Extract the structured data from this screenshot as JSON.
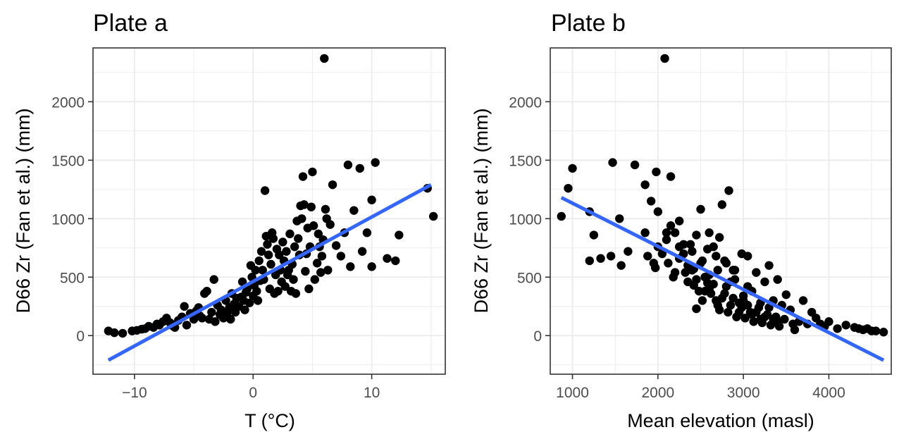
{
  "colors": {
    "points": "#000000",
    "fit_line": "#3366ff",
    "grid": "#ebebeb",
    "panel_border": "#333333",
    "tick_text": "#4d4d4d"
  },
  "chart_data": [
    {
      "type": "scatter",
      "title": "Plate a",
      "xlabel": "T (°C)",
      "ylabel": "D66 Zr (Fan et al.) (mm)",
      "xlim": [
        -13.5,
        16.2
      ],
      "ylim": [
        -330,
        2460
      ],
      "xticks": [
        -10,
        0,
        10
      ],
      "xtick_labels": [
        "−10",
        "0",
        "10"
      ],
      "yticks": [
        0,
        500,
        1000,
        1500,
        2000
      ],
      "ytick_labels": [
        "0",
        "500",
        "1000",
        "1500",
        "2000"
      ],
      "grid": true,
      "fit_line": {
        "method": "linear",
        "x": [
          -12.2,
          15.0
        ],
        "y": [
          -210,
          1290
        ]
      },
      "points": [
        [
          -12.2,
          40
        ],
        [
          -11.7,
          25
        ],
        [
          -11,
          20
        ],
        [
          -10.2,
          40
        ],
        [
          -9.8,
          45
        ],
        [
          -9.4,
          55
        ],
        [
          -9.1,
          60
        ],
        [
          -8.8,
          80
        ],
        [
          -8.4,
          70
        ],
        [
          -8.1,
          100
        ],
        [
          -7.9,
          90
        ],
        [
          -7.6,
          120
        ],
        [
          -7.3,
          150
        ],
        [
          -7,
          110
        ],
        [
          -6.8,
          85
        ],
        [
          -6.6,
          70
        ],
        [
          -6.3,
          130
        ],
        [
          -6,
          160
        ],
        [
          -5.8,
          250
        ],
        [
          -5.6,
          90
        ],
        [
          -5.3,
          190
        ],
        [
          -5,
          140
        ],
        [
          -4.8,
          210
        ],
        [
          -4.6,
          240
        ],
        [
          -4.5,
          170
        ],
        [
          -4.3,
          150
        ],
        [
          -4.1,
          360
        ],
        [
          -3.9,
          380
        ],
        [
          -3.7,
          140
        ],
        [
          -3.5,
          200
        ],
        [
          -3.3,
          480
        ],
        [
          -3.2,
          120
        ],
        [
          -3,
          260
        ],
        [
          -2.8,
          180
        ],
        [
          -2.7,
          220
        ],
        [
          -2.5,
          150
        ],
        [
          -2.3,
          300
        ],
        [
          -2.2,
          190
        ],
        [
          -2,
          240
        ],
        [
          -1.9,
          140
        ],
        [
          -1.8,
          360
        ],
        [
          -1.6,
          270
        ],
        [
          -1.5,
          200
        ],
        [
          -1.4,
          320
        ],
        [
          -1.2,
          250
        ],
        [
          -1,
          330
        ],
        [
          -0.9,
          460
        ],
        [
          -0.8,
          300
        ],
        [
          -0.7,
          220
        ],
        [
          -0.6,
          370
        ],
        [
          -0.5,
          400
        ],
        [
          -0.3,
          280
        ],
        [
          -0.2,
          600
        ],
        [
          -0.1,
          500
        ],
        [
          0,
          340
        ],
        [
          0.1,
          430
        ],
        [
          0.2,
          560
        ],
        [
          0.3,
          380
        ],
        [
          0.4,
          300
        ],
        [
          0.5,
          640
        ],
        [
          0.6,
          470
        ],
        [
          0.7,
          720
        ],
        [
          0.8,
          560
        ],
        [
          0.9,
          480
        ],
        [
          1,
          1240
        ],
        [
          1.1,
          850
        ],
        [
          1.2,
          780
        ],
        [
          1.3,
          690
        ],
        [
          1.4,
          400
        ],
        [
          1.5,
          610
        ],
        [
          1.6,
          880
        ],
        [
          1.7,
          830
        ],
        [
          1.8,
          360
        ],
        [
          1.9,
          520
        ],
        [
          2,
          740
        ],
        [
          2.1,
          380
        ],
        [
          2.2,
          690
        ],
        [
          2.3,
          560
        ],
        [
          2.4,
          460
        ],
        [
          2.5,
          800
        ],
        [
          2.6,
          640
        ],
        [
          2.7,
          420
        ],
        [
          2.8,
          720
        ],
        [
          2.9,
          520
        ],
        [
          3,
          560
        ],
        [
          3.1,
          870
        ],
        [
          3.2,
          380
        ],
        [
          3.3,
          610
        ],
        [
          3.4,
          480
        ],
        [
          3.5,
          760
        ],
        [
          3.6,
          360
        ],
        [
          3.7,
          980
        ],
        [
          3.8,
          830
        ],
        [
          3.9,
          690
        ],
        [
          4,
          1110
        ],
        [
          4.1,
          1000
        ],
        [
          4.2,
          1360
        ],
        [
          4.3,
          1120
        ],
        [
          4.4,
          550
        ],
        [
          4.5,
          700
        ],
        [
          4.6,
          920
        ],
        [
          4.7,
          400
        ],
        [
          4.8,
          760
        ],
        [
          4.9,
          1100
        ],
        [
          5,
          1400
        ],
        [
          5.1,
          940
        ],
        [
          5.2,
          480
        ],
        [
          5.4,
          620
        ],
        [
          5.5,
          870
        ],
        [
          5.6,
          760
        ],
        [
          5.7,
          540
        ],
        [
          5.8,
          680
        ],
        [
          5.9,
          820
        ],
        [
          6,
          2370
        ],
        [
          6.1,
          1080
        ],
        [
          6.2,
          1000
        ],
        [
          6.3,
          560
        ],
        [
          6.5,
          950
        ],
        [
          6.7,
          1290
        ],
        [
          7,
          770
        ],
        [
          7.4,
          680
        ],
        [
          7.7,
          880
        ],
        [
          8,
          1460
        ],
        [
          8.2,
          590
        ],
        [
          8.5,
          1070
        ],
        [
          9,
          1430
        ],
        [
          9.2,
          720
        ],
        [
          9.6,
          880
        ],
        [
          10,
          1160
        ],
        [
          10,
          590
        ],
        [
          10.3,
          1480
        ],
        [
          11.3,
          660
        ],
        [
          12,
          640
        ],
        [
          12.3,
          860
        ],
        [
          14.7,
          1260
        ],
        [
          15.2,
          1020
        ]
      ]
    },
    {
      "type": "scatter",
      "title": "Plate b",
      "xlabel": "Mean elevation (masl)",
      "ylabel": "D66 Zr (Fan et al.) (mm)",
      "xlim": [
        740,
        4730
      ],
      "ylim": [
        -330,
        2460
      ],
      "xticks": [
        1000,
        2000,
        3000,
        4000
      ],
      "xtick_labels": [
        "1000",
        "2000",
        "3000",
        "4000"
      ],
      "yticks": [
        0,
        500,
        1000,
        1500,
        2000
      ],
      "ytick_labels": [
        "0",
        "500",
        "1000",
        "1500",
        "2000"
      ],
      "grid": true,
      "fit_line": {
        "method": "linear",
        "x": [
          870,
          4640
        ],
        "y": [
          1180,
          -210
        ]
      },
      "points": [
        [
          870,
          1020
        ],
        [
          950,
          1260
        ],
        [
          1000,
          1430
        ],
        [
          1200,
          1060
        ],
        [
          1200,
          640
        ],
        [
          1250,
          860
        ],
        [
          1330,
          660
        ],
        [
          1450,
          680
        ],
        [
          1470,
          1480
        ],
        [
          1550,
          1000
        ],
        [
          1570,
          600
        ],
        [
          1650,
          720
        ],
        [
          1730,
          1460
        ],
        [
          1850,
          1290
        ],
        [
          1850,
          880
        ],
        [
          1880,
          680
        ],
        [
          1920,
          1150
        ],
        [
          1950,
          620
        ],
        [
          1970,
          580
        ],
        [
          1980,
          1400
        ],
        [
          2000,
          1060
        ],
        [
          2050,
          700
        ],
        [
          2080,
          2370
        ],
        [
          2100,
          880
        ],
        [
          2150,
          1360
        ],
        [
          2150,
          940
        ],
        [
          2200,
          540
        ],
        [
          2250,
          980
        ],
        [
          2300,
          780
        ],
        [
          2350,
          460
        ],
        [
          2400,
          720
        ],
        [
          2420,
          570
        ],
        [
          2450,
          230
        ],
        [
          2500,
          1080
        ],
        [
          2520,
          640
        ],
        [
          2550,
          500
        ],
        [
          2600,
          400
        ],
        [
          2600,
          880
        ],
        [
          2650,
          760
        ],
        [
          2700,
          260
        ],
        [
          2720,
          840
        ],
        [
          2750,
          1120
        ],
        [
          2800,
          620
        ],
        [
          2830,
          1240
        ],
        [
          2850,
          460
        ],
        [
          2900,
          560
        ],
        [
          2950,
          200
        ],
        [
          2980,
          700
        ],
        [
          3000,
          340
        ],
        [
          3050,
          680
        ],
        [
          3050,
          420
        ],
        [
          3100,
          180
        ],
        [
          3150,
          540
        ],
        [
          3200,
          140
        ],
        [
          3250,
          460
        ],
        [
          3300,
          600
        ],
        [
          3350,
          300
        ],
        [
          3400,
          480
        ],
        [
          3400,
          120
        ],
        [
          3450,
          260
        ],
        [
          3500,
          350
        ],
        [
          3550,
          220
        ],
        [
          3600,
          50
        ],
        [
          3650,
          120
        ],
        [
          3700,
          300
        ],
        [
          3750,
          100
        ],
        [
          3800,
          200
        ],
        [
          3850,
          150
        ],
        [
          3900,
          100
        ],
        [
          3950,
          80
        ],
        [
          4000,
          120
        ],
        [
          4100,
          60
        ],
        [
          4200,
          90
        ],
        [
          4300,
          70
        ],
        [
          4350,
          60
        ],
        [
          4400,
          50
        ],
        [
          4450,
          60
        ],
        [
          4500,
          40
        ],
        [
          4550,
          40
        ],
        [
          4640,
          30
        ],
        [
          2200,
          880
        ],
        [
          2300,
          700
        ],
        [
          2400,
          560
        ],
        [
          2500,
          620
        ],
        [
          2600,
          520
        ],
        [
          2700,
          560
        ],
        [
          2800,
          420
        ],
        [
          2900,
          480
        ],
        [
          3000,
          300
        ],
        [
          3100,
          380
        ],
        [
          3200,
          280
        ],
        [
          3300,
          240
        ],
        [
          2250,
          660
        ],
        [
          2350,
          600
        ],
        [
          2450,
          480
        ],
        [
          2550,
          380
        ],
        [
          2650,
          440
        ],
        [
          2750,
          320
        ],
        [
          2850,
          260
        ],
        [
          2950,
          280
        ],
        [
          3050,
          260
        ],
        [
          3150,
          200
        ],
        [
          3250,
          160
        ],
        [
          3350,
          140
        ],
        [
          2120,
          620
        ],
        [
          2180,
          500
        ],
        [
          2320,
          540
        ],
        [
          2420,
          430
        ],
        [
          2520,
          300
        ],
        [
          2620,
          360
        ],
        [
          2720,
          220
        ],
        [
          2820,
          200
        ],
        [
          2920,
          160
        ],
        [
          3020,
          150
        ],
        [
          3120,
          120
        ],
        [
          3220,
          110
        ],
        [
          3320,
          90
        ],
        [
          3420,
          80
        ],
        [
          2480,
          380
        ],
        [
          2580,
          450
        ],
        [
          2680,
          300
        ],
        [
          2780,
          360
        ],
        [
          2880,
          320
        ],
        [
          2980,
          240
        ],
        [
          3080,
          200
        ],
        [
          3180,
          240
        ],
        [
          3280,
          180
        ],
        [
          3380,
          160
        ],
        [
          3480,
          140
        ],
        [
          3580,
          100
        ],
        [
          2000,
          760
        ],
        [
          2100,
          820
        ],
        [
          2250,
          760
        ],
        [
          2380,
          780
        ],
        [
          2450,
          860
        ],
        [
          2580,
          740
        ],
        [
          2680,
          680
        ],
        [
          2780,
          640
        ],
        [
          2880,
          560
        ]
      ]
    }
  ]
}
